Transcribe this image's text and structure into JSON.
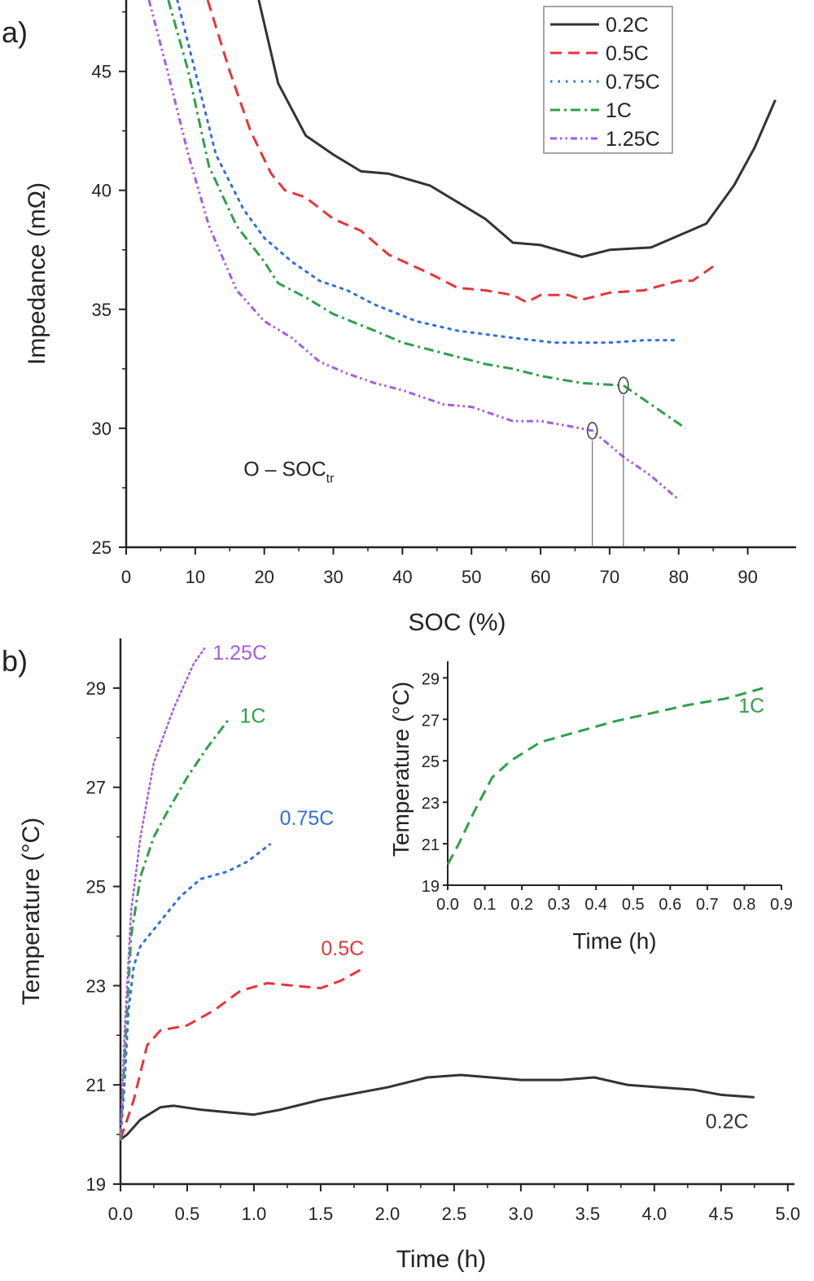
{
  "colors": {
    "0.2C": "#333333",
    "0.5C": "#e8343b",
    "0.75C": "#2f6fe0",
    "1C": "#2ea04a",
    "1.25C": "#a65be6"
  },
  "chart_data": [
    {
      "panel_label": "a)",
      "type": "line",
      "xlabel": "SOC (%)",
      "ylabel": "Impedance (mΩ)",
      "xlim": [
        0,
        97
      ],
      "ylim": [
        25,
        48
      ],
      "xticks": [
        0,
        10,
        20,
        30,
        40,
        50,
        60,
        70,
        80,
        90
      ],
      "yticks": [
        25,
        30,
        35,
        40,
        45
      ],
      "grid": false,
      "legend": {
        "placement": "top-right",
        "entries": [
          "0.2C",
          "0.5C",
          "0.75C",
          "1C",
          "1.25C"
        ]
      },
      "annotation": {
        "text": "O – SOC",
        "subscript": "tr",
        "x": 17,
        "y": 28
      },
      "markers": [
        {
          "series": "1.25C",
          "x": 67.5,
          "y": 29.9
        },
        {
          "series": "1C",
          "x": 72,
          "y": 31.8
        }
      ],
      "series": [
        {
          "name": "0.2C",
          "style": "solid",
          "x": [
            19.2,
            22,
            26,
            30,
            34,
            38,
            44,
            48,
            52,
            56,
            60,
            66,
            70,
            76,
            80,
            84,
            88,
            91,
            94
          ],
          "y": [
            48,
            44.5,
            42.3,
            41.5,
            40.8,
            40.7,
            40.2,
            39.5,
            38.8,
            37.8,
            37.7,
            37.2,
            37.5,
            37.6,
            38.1,
            38.6,
            40.2,
            41.8,
            43.8
          ]
        },
        {
          "name": "0.5C",
          "style": "dash",
          "x": [
            11.8,
            15,
            18,
            21,
            23,
            26,
            30,
            34,
            38,
            44,
            48,
            52,
            56,
            58,
            60,
            64,
            66,
            70,
            75,
            80,
            82,
            85
          ],
          "y": [
            48,
            45,
            42.5,
            40.7,
            40,
            39.7,
            38.8,
            38.3,
            37.3,
            36.5,
            35.9,
            35.8,
            35.6,
            35.3,
            35.6,
            35.6,
            35.4,
            35.7,
            35.8,
            36.2,
            36.2,
            36.8
          ]
        },
        {
          "name": "0.75C",
          "style": "dot",
          "x": [
            7.4,
            10,
            13,
            17,
            20,
            24,
            28,
            32,
            36,
            42,
            48,
            56,
            62,
            70,
            75,
            80
          ],
          "y": [
            48,
            45,
            41.5,
            39.2,
            38,
            37,
            36.2,
            35.8,
            35.2,
            34.5,
            34.1,
            33.8,
            33.6,
            33.6,
            33.7,
            33.7
          ]
        },
        {
          "name": "1C",
          "style": "dashdot",
          "x": [
            6.1,
            9,
            12,
            16,
            20,
            22,
            26,
            30,
            36,
            40,
            44,
            48,
            52,
            56,
            60,
            66,
            72,
            76,
            81
          ],
          "y": [
            48,
            45,
            41,
            38.5,
            37,
            36.1,
            35.5,
            34.8,
            34.1,
            33.6,
            33.3,
            33.0,
            32.7,
            32.5,
            32.2,
            31.9,
            31.8,
            31,
            30
          ]
        },
        {
          "name": "1.25C",
          "style": "dashdotdot",
          "x": [
            3.3,
            6,
            9,
            12,
            16,
            20,
            24,
            28,
            32,
            36,
            40,
            46,
            50,
            56,
            60,
            64,
            67.5,
            72,
            76,
            80
          ],
          "y": [
            48,
            45,
            41.5,
            38.5,
            35.8,
            34.5,
            33.8,
            32.8,
            32.3,
            31.9,
            31.6,
            31.0,
            30.9,
            30.3,
            30.3,
            30.1,
            29.9,
            28.8,
            28,
            27
          ]
        }
      ]
    },
    {
      "panel_label": "b)",
      "type": "line",
      "xlabel": "Time (h)",
      "ylabel": "Temperature (°C)",
      "xlim": [
        0,
        5.05
      ],
      "ylim": [
        19,
        30
      ],
      "xticks": [
        "0.0",
        "0.5",
        "1.0",
        "1.5",
        "2.0",
        "2.5",
        "3.0",
        "3.5",
        "4.0",
        "4.5",
        "5.0"
      ],
      "yticks": [
        19,
        21,
        23,
        25,
        27,
        29
      ],
      "grid": false,
      "legend": {
        "placement": "inline-labels"
      },
      "series": [
        {
          "name": "0.2C",
          "style": "solid",
          "x": [
            0,
            0.05,
            0.15,
            0.3,
            0.4,
            0.6,
            0.8,
            1.0,
            1.2,
            1.5,
            2.0,
            2.3,
            2.55,
            3.0,
            3.3,
            3.55,
            3.8,
            4.3,
            4.5,
            4.75
          ],
          "y": [
            19.9,
            20,
            20.3,
            20.55,
            20.58,
            20.5,
            20.45,
            20.4,
            20.5,
            20.7,
            20.95,
            21.15,
            21.2,
            21.1,
            21.1,
            21.15,
            21.0,
            20.9,
            20.8,
            20.75
          ]
        },
        {
          "name": "0.5C",
          "style": "dash",
          "x": [
            0,
            0.1,
            0.2,
            0.3,
            0.5,
            0.7,
            0.9,
            1.1,
            1.3,
            1.5,
            1.65,
            1.82
          ],
          "y": [
            19.9,
            20.7,
            21.8,
            22.1,
            22.2,
            22.5,
            22.9,
            23.05,
            23.0,
            22.95,
            23.1,
            23.35
          ]
        },
        {
          "name": "0.75C",
          "style": "dot",
          "x": [
            0,
            0.03,
            0.06,
            0.1,
            0.15,
            0.3,
            0.45,
            0.6,
            0.8,
            0.95,
            1.12
          ],
          "y": [
            19.9,
            21,
            22.5,
            23.4,
            23.8,
            24.3,
            24.8,
            25.15,
            25.3,
            25.5,
            25.85
          ]
        },
        {
          "name": "1C",
          "style": "dashdot",
          "x": [
            0,
            0.03,
            0.08,
            0.15,
            0.25,
            0.35,
            0.5,
            0.65,
            0.82
          ],
          "y": [
            19.9,
            21.5,
            24,
            25.2,
            26,
            26.5,
            27.2,
            27.8,
            28.4
          ]
        },
        {
          "name": "1.25C",
          "style": "dotfine",
          "x": [
            0,
            0.03,
            0.08,
            0.15,
            0.25,
            0.4,
            0.55,
            0.63
          ],
          "y": [
            19.9,
            22,
            24.5,
            26,
            27.5,
            28.6,
            29.5,
            29.8
          ]
        }
      ]
    },
    {
      "panel_label": "",
      "type": "line",
      "inset_of": "b)",
      "xlabel": "Time (h)",
      "ylabel": "Temperature (°C)",
      "xlim": [
        0,
        0.9
      ],
      "ylim": [
        19,
        29.8
      ],
      "xticks": [
        "0.0",
        "0.1",
        "0.2",
        "0.3",
        "0.4",
        "0.5",
        "0.6",
        "0.7",
        "0.8",
        "0.9"
      ],
      "yticks": [
        19,
        21,
        23,
        25,
        27,
        29
      ],
      "grid": false,
      "series": [
        {
          "name": "1C",
          "style": "dash",
          "x": [
            0,
            0.03,
            0.07,
            0.12,
            0.17,
            0.25,
            0.35,
            0.45,
            0.55,
            0.65,
            0.75,
            0.85
          ],
          "y": [
            20,
            21,
            22.5,
            24.2,
            25,
            25.9,
            26.4,
            26.9,
            27.3,
            27.7,
            28,
            28.5
          ]
        }
      ]
    }
  ]
}
